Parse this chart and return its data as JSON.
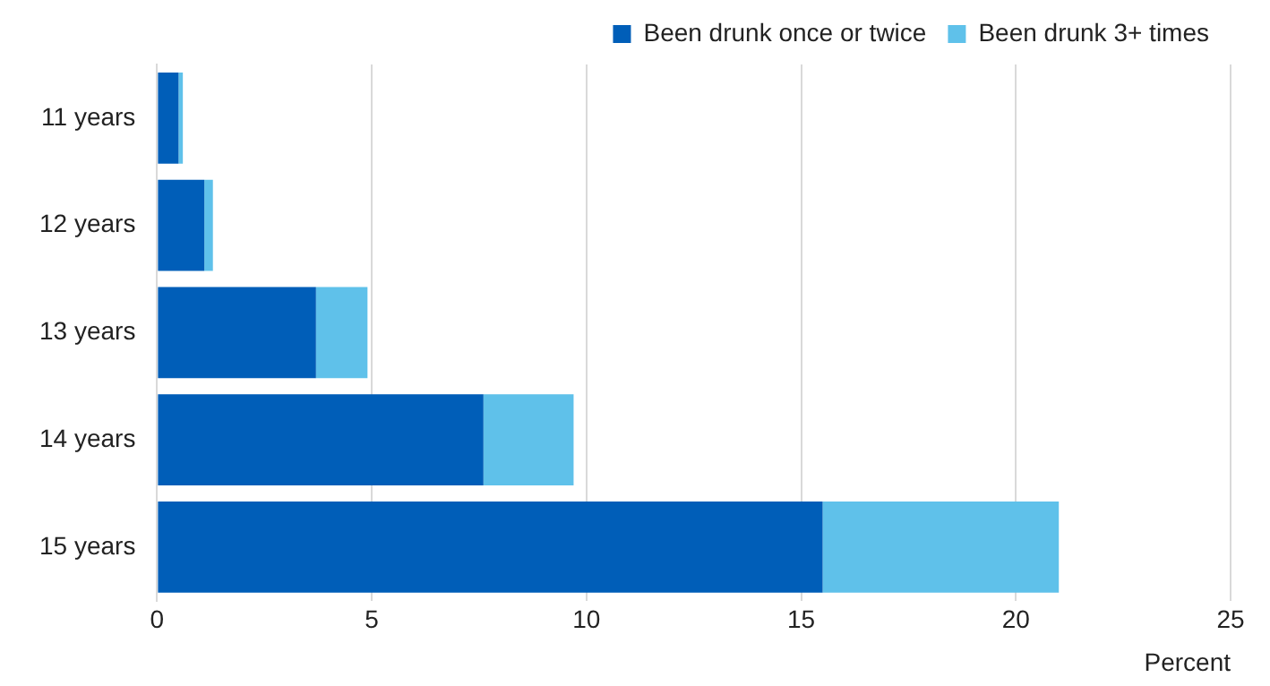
{
  "chart_data": {
    "type": "bar",
    "orientation": "horizontal",
    "stacked": true,
    "xlabel": "Percent",
    "categories": [
      "11 years",
      "12 years",
      "13 years",
      "14 years",
      "15 years"
    ],
    "series": [
      {
        "name": "Been drunk once or twice",
        "color": "#005eb8",
        "values": [
          0.5,
          1.1,
          3.7,
          7.6,
          15.5
        ]
      },
      {
        "name": "Been drunk 3+ times",
        "color": "#5fc1ea",
        "values": [
          0.1,
          0.2,
          1.2,
          2.1,
          5.5
        ]
      }
    ],
    "xlim": [
      0,
      25
    ],
    "xticks": [
      0,
      5,
      10,
      15,
      20,
      25
    ],
    "grid": "x",
    "legend": "top right"
  }
}
